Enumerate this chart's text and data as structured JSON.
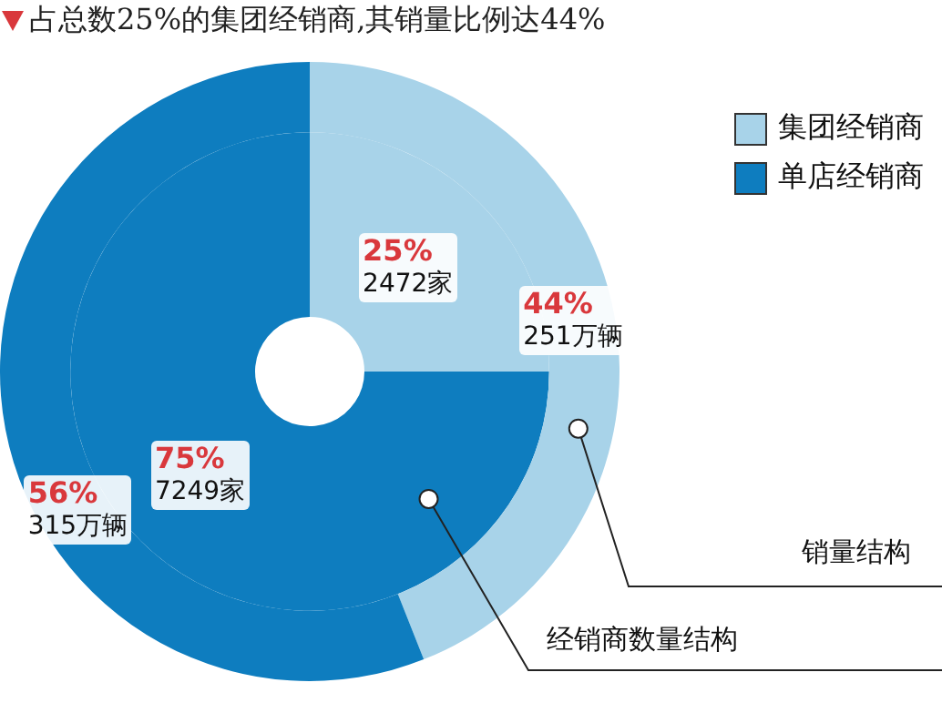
{
  "chart_data": {
    "type": "donut",
    "title": "占总数25%的集团经销商,其销量比例达44%",
    "categories": [
      "集团经销商",
      "单店经销商"
    ],
    "colors": [
      "#a8d3e9",
      "#0e7dbf"
    ],
    "series": [
      {
        "name": "经销商数量结构",
        "values": [
          25,
          75
        ],
        "value_labels": [
          "25%\n2472家",
          "75%\n7249家"
        ]
      },
      {
        "name": "销量结构",
        "values": [
          44,
          56
        ],
        "value_labels": [
          "44%\n251万辆",
          "56%\n315万辆"
        ]
      }
    ],
    "legend": "top right"
  }
}
